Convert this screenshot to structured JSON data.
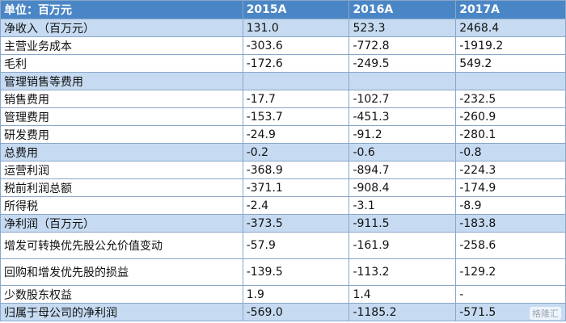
{
  "table": {
    "headers": [
      "单位：百万元",
      "2015A",
      "2016A",
      "2017A"
    ],
    "rows": [
      {
        "label": "净收入（百万元）",
        "v2015": "131.0",
        "v2016": "523.3",
        "v2017": "2468.4"
      },
      {
        "label": "主营业务成本",
        "v2015": "-303.6",
        "v2016": "-772.8",
        "v2017": "-1919.2"
      },
      {
        "label": "毛利",
        "v2015": "-172.6",
        "v2016": "-249.5",
        "v2017": "549.2"
      },
      {
        "label": "管理销售等费用",
        "v2015": "",
        "v2016": "",
        "v2017": ""
      },
      {
        "label": "销售费用",
        "v2015": "-17.7",
        "v2016": "-102.7",
        "v2017": "-232.5"
      },
      {
        "label": "管理费用",
        "v2015": "-153.7",
        "v2016": "-451.3",
        "v2017": "-260.9"
      },
      {
        "label": "研发费用",
        "v2015": "-24.9",
        "v2016": "-91.2",
        "v2017": "-280.1"
      },
      {
        "label": "总费用",
        "v2015": "-0.2",
        "v2016": "-0.6",
        "v2017": "-0.8"
      },
      {
        "label": "运营利润",
        "v2015": "-368.9",
        "v2016": "-894.7",
        "v2017": "-224.3"
      },
      {
        "label": "税前利润总额",
        "v2015": "-371.1",
        "v2016": "-908.4",
        "v2017": "-174.9"
      },
      {
        "label": "所得税",
        "v2015": "-2.4",
        "v2016": "-3.1",
        "v2017": "-8.9"
      },
      {
        "label": "净利润（百万元）",
        "v2015": "-373.5",
        "v2016": "-911.5",
        "v2017": "-183.8"
      },
      {
        "label": "增发可转换优先股公允价值变动",
        "v2015": "-57.9",
        "v2016": "-161.9",
        "v2017": "-258.6"
      },
      {
        "label": "回购和增发优先股的损益",
        "v2015": "-139.5",
        "v2016": "-113.2",
        "v2017": "-129.2"
      },
      {
        "label": "少数股东权益",
        "v2015": "1.9",
        "v2016": "1.4",
        "v2017": "-"
      },
      {
        "label": "归属于母公司的净利润",
        "v2015": "-569.0",
        "v2016": "-1185.2",
        "v2017": "-571.5"
      }
    ]
  },
  "watermark": "格隆汇"
}
